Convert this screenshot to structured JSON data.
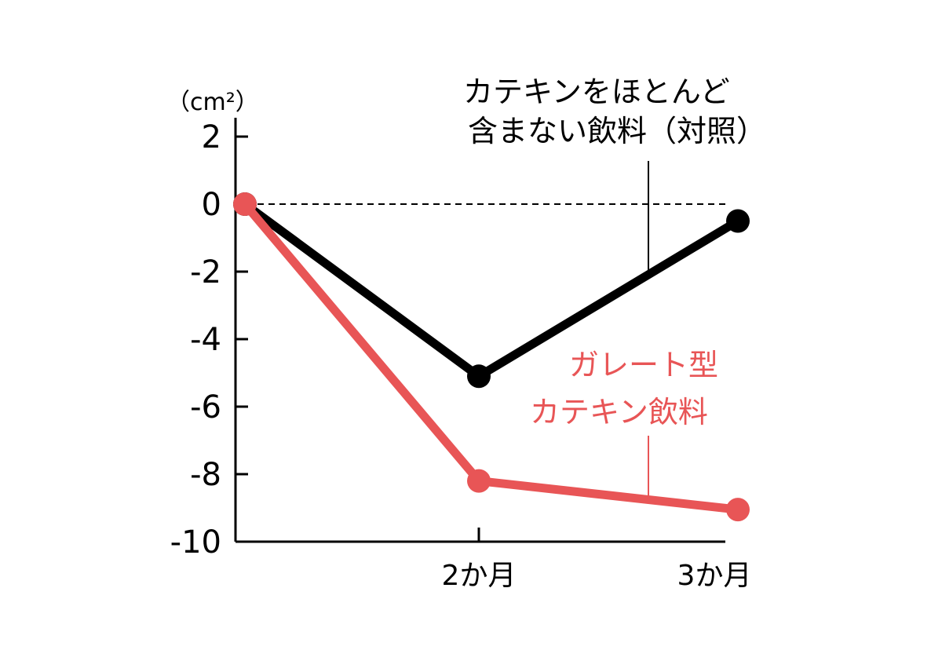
{
  "chart_data": {
    "type": "line",
    "ylabel": "（cm²）",
    "y_ticks": [
      "2",
      "0",
      "-2",
      "-4",
      "-6",
      "-8",
      "-10"
    ],
    "y_tick_values": [
      2,
      0,
      -2,
      -4,
      -6,
      -8,
      -10
    ],
    "ylim": [
      -10,
      2.5
    ],
    "x_ticks": [
      "2か月",
      "3か月"
    ],
    "x_values": [
      0,
      2,
      3
    ],
    "baseline": 0,
    "grid": false,
    "series": [
      {
        "name_lines": [
          "カテキンをほとんど",
          "含まない飲料（対照）"
        ],
        "color": "#000000",
        "values": [
          0,
          -5.1,
          -0.5
        ]
      },
      {
        "name_lines": [
          "ガレート型",
          "カテキン飲料"
        ],
        "color": "#e85556",
        "values": [
          0,
          -8.2,
          -9.05
        ]
      }
    ]
  }
}
